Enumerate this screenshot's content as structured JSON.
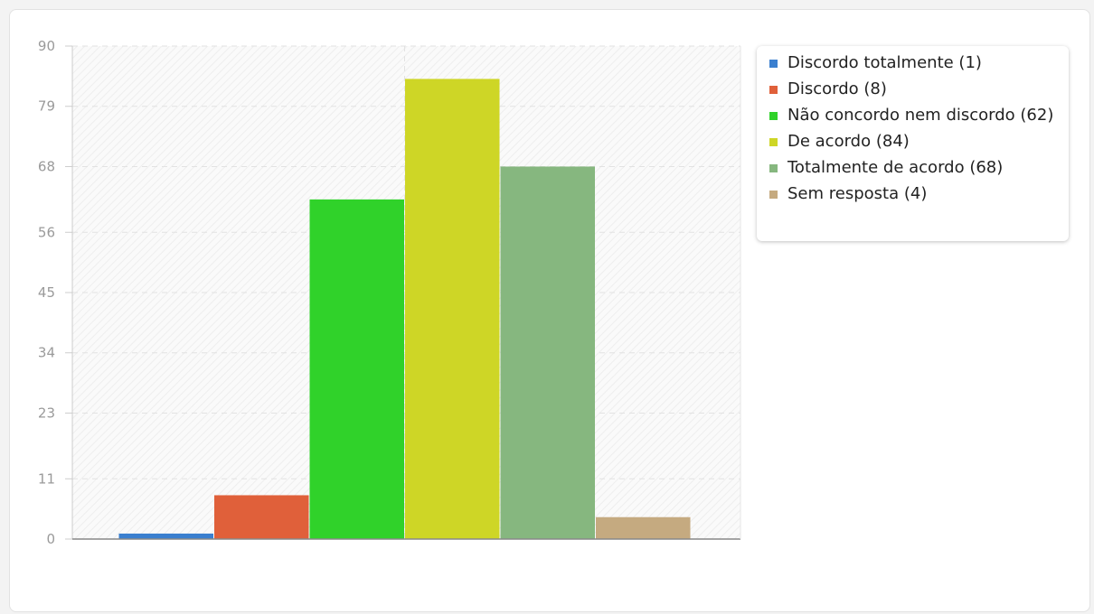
{
  "chart_data": {
    "type": "bar",
    "title": "",
    "xlabel": "",
    "ylabel": "",
    "ylim": [
      0,
      90
    ],
    "yticks": [
      0,
      11,
      23,
      34,
      45,
      56,
      68,
      79,
      90
    ],
    "grid": true,
    "legend_position": "top-right",
    "categories": [
      "Discordo totalmente",
      "Discordo",
      "Não concordo nem discordo",
      "De acordo",
      "Totalmente de acordo",
      "Sem resposta"
    ],
    "values": [
      1,
      8,
      62,
      84,
      68,
      4
    ],
    "colors": [
      "#3a7fcf",
      "#e0603a",
      "#30d22a",
      "#ced626",
      "#86b77f",
      "#c5aa80"
    ],
    "legend": [
      "Discordo totalmente (1)",
      "Discordo (8)",
      "Não concordo nem discordo (62)",
      "De acordo (84)",
      "Totalmente de acordo (68)",
      "Sem resposta (4)"
    ]
  }
}
